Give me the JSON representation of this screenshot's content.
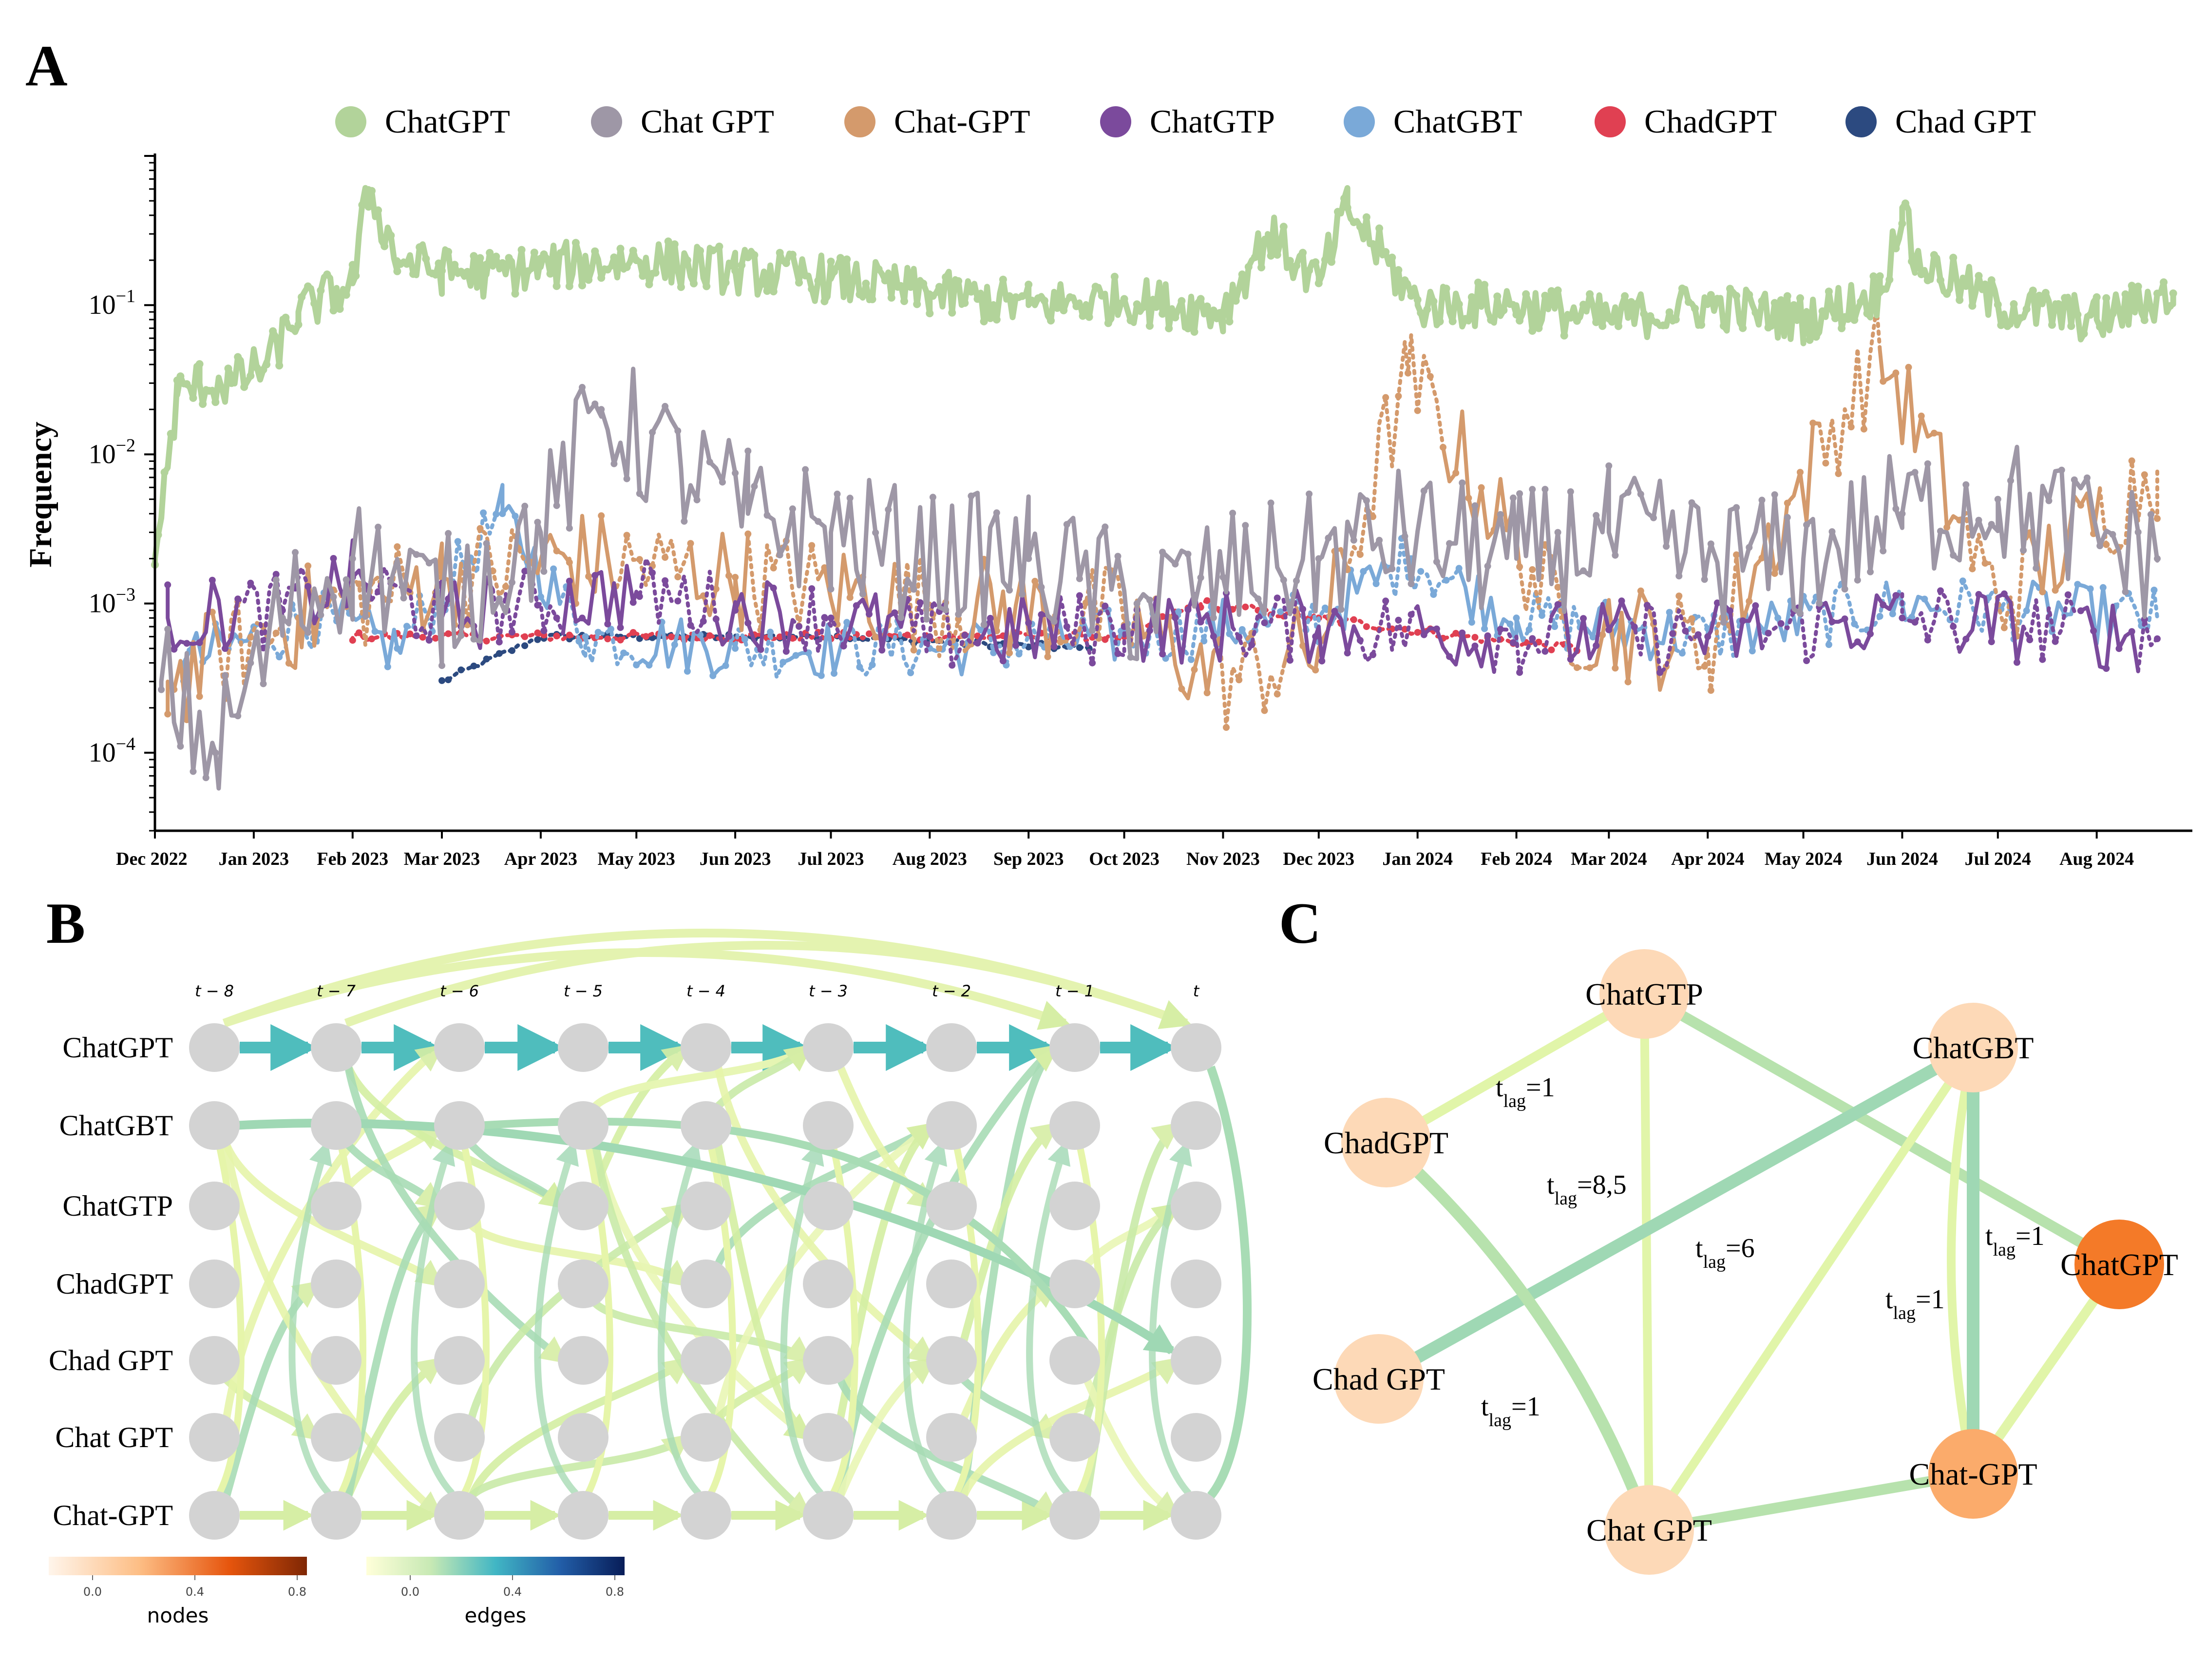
{
  "panels": {
    "a": "A",
    "b": "B",
    "c": "C"
  },
  "colors": {
    "ChatGPT": "#b2d39a",
    "Chat GPT": "#9e97a6",
    "Chat-GPT": "#d49a6c",
    "ChatGTP": "#7b4a9c",
    "ChatGBT": "#7aa9d8",
    "ChadGPT": "#e04052",
    "Chad GPT": "#2c4a80"
  },
  "chart_data": [
    {
      "type": "line",
      "panel": "A",
      "ylabel": "Frequency",
      "yscale": "log",
      "ylim": [
        3e-05,
        1.0
      ],
      "yticks": [
        {
          "value": 0.1,
          "base": "10",
          "exp": "−1"
        },
        {
          "value": 0.01,
          "base": "10",
          "exp": "−2"
        },
        {
          "value": 0.001,
          "base": "10",
          "exp": "−3"
        },
        {
          "value": 0.0001,
          "base": "10",
          "exp": "−4"
        }
      ],
      "xticks": [
        "Dec 2022",
        "Jan 2023",
        "Feb 2023",
        "Mar 2023",
        "Apr 2023",
        "May 2023",
        "Jun 2023",
        "Jul 2023",
        "Aug 2023",
        "Sep 2023",
        "Oct 2023",
        "Nov 2023",
        "Dec 2023",
        "Jan 2024",
        "Feb 2024",
        "Mar 2024",
        "Apr 2024",
        "May 2024",
        "Jun 2024",
        "Jul 2024",
        "Aug 2024"
      ],
      "legend": [
        "ChatGPT",
        "Chat GPT",
        "Chat-GPT",
        "ChatGTP",
        "ChatGBT",
        "ChadGPT",
        "Chad GPT"
      ],
      "legend_position": "top",
      "series": [
        {
          "name": "ChatGPT",
          "style": "solid",
          "x": [
            "2022-12-01",
            "2022-12-08",
            "2022-12-15",
            "2022-12-25",
            "2023-01-05",
            "2023-01-15",
            "2023-02-01",
            "2023-02-06",
            "2023-02-15",
            "2023-03-01",
            "2023-03-15",
            "2023-04-01",
            "2023-05-01",
            "2023-06-01",
            "2023-07-01",
            "2023-08-01",
            "2023-09-01",
            "2023-10-01",
            "2023-11-01",
            "2023-11-15",
            "2023-12-01",
            "2023-12-10",
            "2024-01-01",
            "2024-02-01",
            "2024-03-01",
            "2024-04-01",
            "2024-05-01",
            "2024-05-25",
            "2024-06-01",
            "2024-06-05",
            "2024-07-01",
            "2024-08-01",
            "2024-08-25"
          ],
          "y": [
            0.002,
            0.025,
            0.03,
            0.03,
            0.04,
            0.09,
            0.14,
            0.6,
            0.2,
            0.17,
            0.16,
            0.18,
            0.2,
            0.17,
            0.15,
            0.12,
            0.1,
            0.11,
            0.09,
            0.3,
            0.14,
            0.45,
            0.1,
            0.1,
            0.08,
            0.1,
            0.08,
            0.12,
            0.45,
            0.2,
            0.1,
            0.08,
            0.12
          ]
        },
        {
          "name": "Chat GPT",
          "style": "solid",
          "x": [
            "2022-12-03",
            "2022-12-20",
            "2023-01-10",
            "2023-02-01",
            "2023-03-01",
            "2023-04-01",
            "2023-04-20",
            "2023-05-15",
            "2023-06-05",
            "2023-07-01",
            "2023-08-01",
            "2023-09-01",
            "2023-10-05",
            "2023-11-01",
            "2023-12-01",
            "2023-12-28",
            "2024-02-01",
            "2024-03-01",
            "2024-04-01",
            "2024-05-01",
            "2024-06-01",
            "2024-07-01",
            "2024-08-20"
          ],
          "y": [
            0.0003,
            0.0001,
            0.0008,
            0.002,
            0.001,
            0.003,
            0.02,
            0.008,
            0.004,
            0.003,
            0.002,
            0.002,
            0.001,
            0.0015,
            0.002,
            0.003,
            0.002,
            0.003,
            0.002,
            0.002,
            0.004,
            0.005,
            0.002
          ]
        },
        {
          "name": "Chat-GPT",
          "style": "mixed",
          "x": [
            "2022-12-05",
            "2023-01-15",
            "2023-03-01",
            "2023-04-10",
            "2023-06-01",
            "2023-08-01",
            "2023-10-01",
            "2023-11-01",
            "2023-12-01",
            "2023-12-29",
            "2024-02-15",
            "2024-04-01",
            "2024-05-25",
            "2024-07-01",
            "2024-08-20"
          ],
          "y": [
            0.0003,
            0.0008,
            0.0015,
            0.002,
            0.0015,
            0.001,
            0.0008,
            0.0003,
            0.0005,
            0.035,
            0.0008,
            0.0005,
            0.05,
            0.001,
            0.008
          ]
        },
        {
          "name": "ChatGTP",
          "style": "mixed",
          "x": [
            "2022-12-05",
            "2023-01-10",
            "2023-02-01",
            "2023-03-01",
            "2023-04-01",
            "2023-05-01",
            "2023-06-01",
            "2023-07-01",
            "2023-08-01",
            "2023-10-01",
            "2023-12-01",
            "2024-02-01",
            "2024-04-01",
            "2024-06-01",
            "2024-08-20"
          ],
          "y": [
            0.0008,
            0.0009,
            0.0015,
            0.0008,
            0.001,
            0.0012,
            0.0009,
            0.0008,
            0.0006,
            0.0007,
            0.0007,
            0.0006,
            0.0006,
            0.0008,
            0.0006
          ]
        },
        {
          "name": "ChatGBT",
          "style": "mixed",
          "x": [
            "2022-12-10",
            "2023-01-20",
            "2023-02-15",
            "2023-03-20",
            "2023-04-15",
            "2023-06-01",
            "2023-08-01",
            "2023-10-01",
            "2023-12-01",
            "2023-12-30",
            "2024-02-01",
            "2024-04-01",
            "2024-06-01",
            "2024-08-20"
          ],
          "y": [
            0.0004,
            0.0008,
            0.0005,
            0.004,
            0.0006,
            0.0005,
            0.0005,
            0.0006,
            0.0008,
            0.002,
            0.0008,
            0.0006,
            0.001,
            0.0008
          ]
        },
        {
          "name": "ChadGPT",
          "style": "dotted",
          "x": [
            "2023-02-01",
            "2023-04-01",
            "2023-06-01",
            "2023-08-01",
            "2023-10-01",
            "2023-10-25",
            "2023-12-01",
            "2024-01-15",
            "2024-02-20"
          ],
          "y": [
            0.0006,
            0.0006,
            0.0006,
            0.0006,
            0.0006,
            0.001,
            0.0008,
            0.0006,
            0.0005
          ]
        },
        {
          "name": "Chad GPT",
          "style": "dotted",
          "x": [
            "2023-03-01",
            "2023-04-01",
            "2023-05-01",
            "2023-07-01",
            "2023-09-20"
          ],
          "y": [
            0.0003,
            0.0006,
            0.0006,
            0.0006,
            0.0005
          ]
        }
      ]
    },
    {
      "type": "network",
      "panel": "B",
      "time_labels": [
        "t − 8",
        "t − 7",
        "t − 6",
        "t − 5",
        "t − 4",
        "t − 3",
        "t − 2",
        "t − 1",
        "t"
      ],
      "rows": [
        "ChatGPT",
        "ChatGBT",
        "ChatGTP",
        "ChadGPT",
        "Chad GPT",
        "Chat GPT",
        "Chat-GPT"
      ],
      "colorbars": [
        {
          "title": "nodes",
          "ticks": [
            "0.0",
            "0.4",
            "0.8"
          ],
          "range": [
            0,
            1
          ],
          "colormap": "white-orange-brown"
        },
        {
          "title": "edges",
          "ticks": [
            "0.0",
            "0.4",
            "0.8"
          ],
          "range": [
            0,
            1
          ],
          "colormap": "yellow-green-blue"
        }
      ]
    },
    {
      "type": "network",
      "panel": "C",
      "nodes": [
        {
          "name": "ChatGTP",
          "value": 0.15
        },
        {
          "name": "ChatGBT",
          "value": 0.15
        },
        {
          "name": "ChadGPT",
          "value": 0.15
        },
        {
          "name": "ChatGPT",
          "value": 0.55
        },
        {
          "name": "Chad GPT",
          "value": 0.15
        },
        {
          "name": "Chat-GPT",
          "value": 0.35
        },
        {
          "name": "Chat GPT",
          "value": 0.15
        }
      ],
      "edges": [
        {
          "from": "ChatGTP",
          "to": "ChadGPT",
          "lag": "1",
          "weight": 0.15
        },
        {
          "from": "ChatGTP",
          "to": "Chat GPT",
          "lag": "",
          "weight": 0.1
        },
        {
          "from": "ChatGTP",
          "to": "ChatGPT",
          "lag": "",
          "weight": 0.2
        },
        {
          "from": "Chad GPT",
          "to": "ChatGBT",
          "lag": "8,5",
          "weight": 0.1
        },
        {
          "from": "ChatGBT",
          "to": "Chad GPT",
          "lag": "6",
          "weight": 0.3
        },
        {
          "from": "Chat GPT",
          "to": "ChadGPT",
          "lag": "1",
          "weight": 0.25
        },
        {
          "from": "Chat GPT",
          "to": "ChatGBT",
          "lag": "",
          "weight": 0.1
        },
        {
          "from": "ChatGBT",
          "to": "Chat-GPT",
          "lag": "1",
          "weight": 0.1
        },
        {
          "from": "ChatGBT",
          "to": "Chat-GPT",
          "lag": "1",
          "weight": 0.3
        },
        {
          "from": "ChatGPT",
          "to": "Chat-GPT",
          "lag": "",
          "weight": 0.15
        },
        {
          "from": "Chat GPT",
          "to": "Chat-GPT",
          "lag": "",
          "weight": 0.2
        }
      ],
      "lag_prefix": "t",
      "lag_sub": "lag"
    }
  ]
}
